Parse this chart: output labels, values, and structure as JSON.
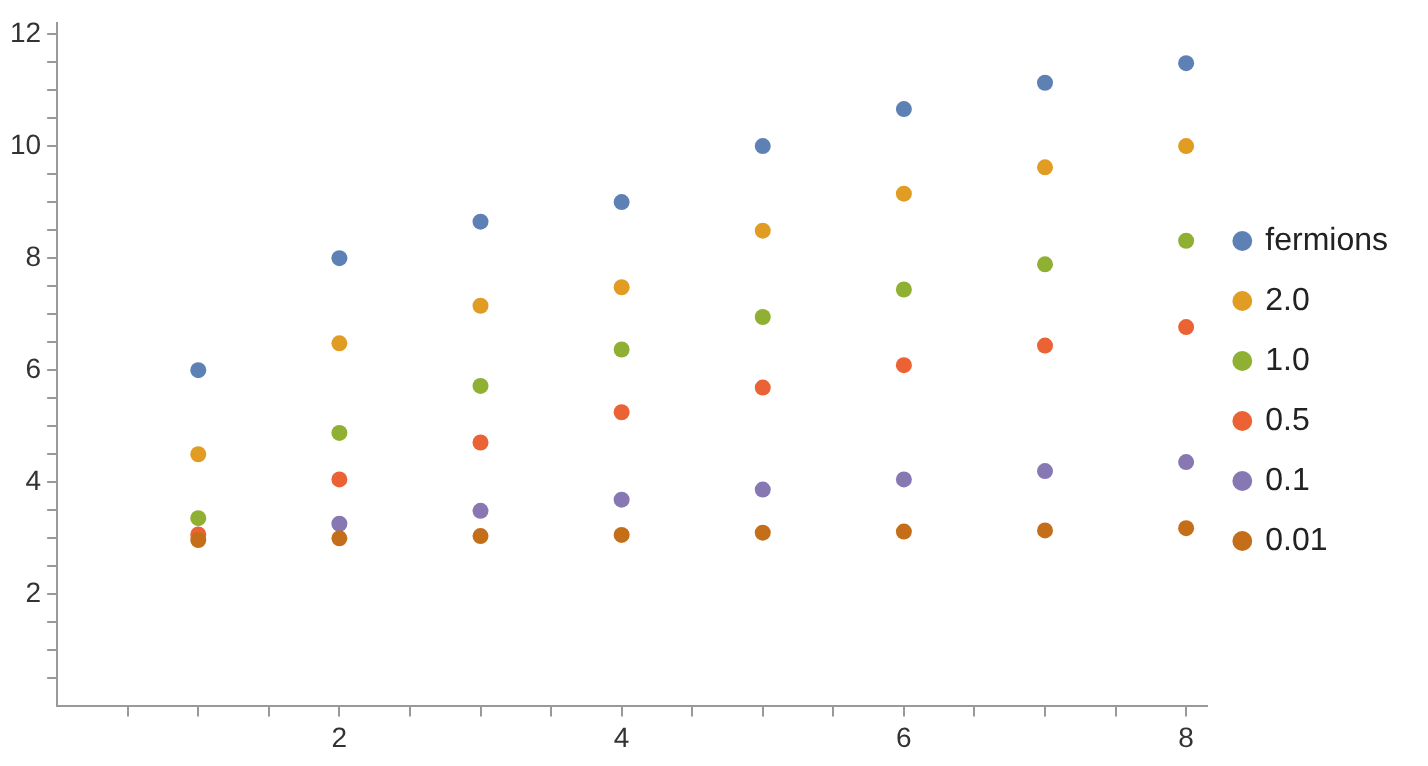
{
  "chart_data": {
    "type": "scatter",
    "x": [
      1,
      2,
      3,
      4,
      5,
      6,
      7,
      8
    ],
    "series": [
      {
        "name": "fermions",
        "color": "#5e81b5",
        "values": [
          6.0,
          8.0,
          8.65,
          9.0,
          10.0,
          10.66,
          11.13,
          11.48
        ]
      },
      {
        "name": "2.0",
        "color": "#e19c24",
        "values": [
          4.5,
          6.48,
          7.15,
          7.48,
          8.49,
          9.15,
          9.62,
          10.0
        ]
      },
      {
        "name": "1.0",
        "color": "#8fb032",
        "values": [
          3.36,
          4.88,
          5.72,
          6.37,
          6.95,
          7.44,
          7.89,
          8.31
        ]
      },
      {
        "name": "0.5",
        "color": "#eb6235",
        "values": [
          3.07,
          4.05,
          4.71,
          5.25,
          5.69,
          6.09,
          6.44,
          6.77
        ]
      },
      {
        "name": "0.1",
        "color": "#8778b3",
        "values": [
          null,
          3.26,
          3.49,
          3.69,
          3.87,
          4.05,
          4.2,
          4.36
        ]
      },
      {
        "name": "0.01",
        "color": "#c56e1a",
        "values": [
          2.97,
          3.0,
          3.04,
          3.06,
          3.1,
          3.12,
          3.14,
          3.18
        ]
      }
    ],
    "xlim": [
      0,
      8.15
    ],
    "ylim": [
      0,
      12.2
    ],
    "xticks": [
      {
        "value": 0.5,
        "label": null
      },
      {
        "value": 1,
        "label": null
      },
      {
        "value": 1.5,
        "label": null
      },
      2,
      {
        "value": 2.5,
        "label": null
      },
      {
        "value": 3,
        "label": null
      },
      {
        "value": 3.5,
        "label": null
      },
      4,
      {
        "value": 4.5,
        "label": null
      },
      {
        "value": 5,
        "label": null
      },
      {
        "value": 5.5,
        "label": null
      },
      6,
      {
        "value": 6.5,
        "label": null
      },
      {
        "value": 7,
        "label": null
      },
      {
        "value": 7.5,
        "label": null
      },
      8
    ],
    "yticks": [
      {
        "value": 0.5,
        "label": null
      },
      {
        "value": 1,
        "label": null
      },
      {
        "value": 1.5,
        "label": null
      },
      2,
      {
        "value": 2.5,
        "label": null
      },
      {
        "value": 3,
        "label": null
      },
      {
        "value": 3.5,
        "label": null
      },
      4,
      {
        "value": 4.5,
        "label": null
      },
      {
        "value": 5,
        "label": null
      },
      {
        "value": 5.5,
        "label": null
      },
      6,
      {
        "value": 6.5,
        "label": null
      },
      {
        "value": 7,
        "label": null
      },
      {
        "value": 7.5,
        "label": null
      },
      8,
      {
        "value": 8.5,
        "label": null
      },
      {
        "value": 9,
        "label": null
      },
      {
        "value": 9.5,
        "label": null
      },
      10,
      {
        "value": 10.5,
        "label": null
      },
      {
        "value": 11,
        "label": null
      },
      {
        "value": 11.5,
        "label": null
      },
      12
    ],
    "grid": false,
    "legend": "right",
    "marker": "circle"
  }
}
